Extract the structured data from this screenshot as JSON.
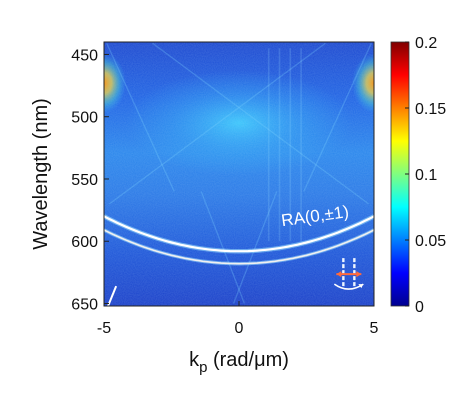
{
  "chart_data": {
    "type": "heatmap",
    "title": "",
    "xlabel": {
      "main": "k",
      "sub": "p",
      "unit": " (rad/μm)"
    },
    "ylabel": "Wavelength (nm)",
    "xlim": [
      -5,
      5
    ],
    "ylim": [
      440,
      652
    ],
    "y_inverted": true,
    "x_ticks": [
      -5,
      0,
      5
    ],
    "x_tick_labels": [
      "-5",
      "0",
      "5"
    ],
    "y_ticks": [
      450,
      500,
      550,
      600,
      650
    ],
    "y_tick_labels": [
      "450",
      "500",
      "550",
      "600",
      "650"
    ],
    "colorbar": {
      "range": [
        0,
        0.2
      ],
      "ticks": [
        0,
        0.05,
        0.1,
        0.15,
        0.2
      ],
      "tick_labels": [
        "0",
        "0.05",
        "0.1",
        "0.15",
        "0.2"
      ],
      "colormap": "jet"
    },
    "curves": [
      {
        "name": "RA(0,±1)",
        "vertex": [
          0,
          608
        ],
        "edge": [
          -5,
          580
        ],
        "color": "#ffffff"
      },
      {
        "vertex": [
          0,
          618
        ],
        "edge": [
          -5,
          591
        ],
        "color": "#f0f0f0"
      }
    ],
    "annotations": [
      {
        "text": "RA(0,±1)",
        "x": 1.6,
        "y": 588
      }
    ],
    "colors": {
      "background_field": "#1f5cd8",
      "hotspot": "#ff9a1a",
      "arrow_accent": "#ff6a3c"
    }
  }
}
